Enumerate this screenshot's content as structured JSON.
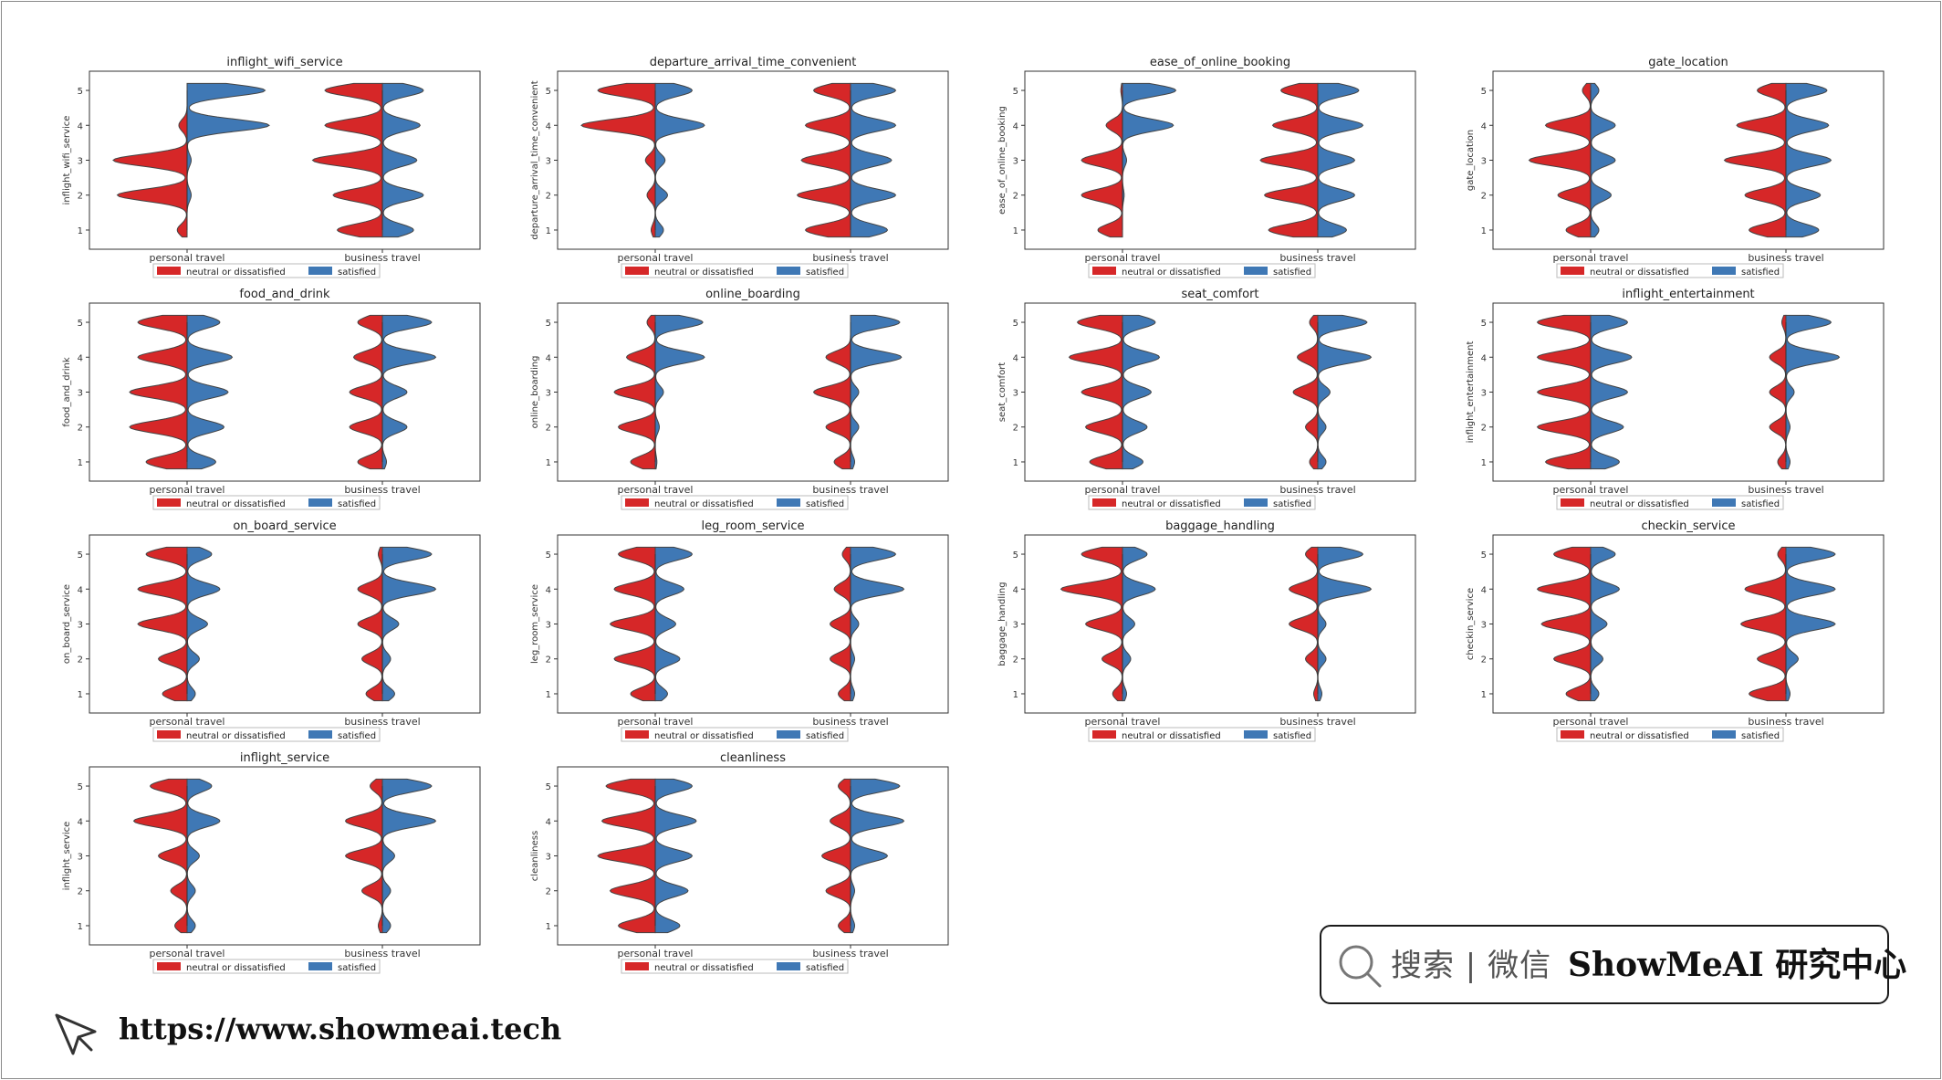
{
  "colors": {
    "neutral": "#d62728",
    "satisfied": "#3f78b5"
  },
  "chart_data": [
    {
      "type": "violin",
      "title": "inflight_wifi_service",
      "ylabel": "inflight_wifi_service",
      "categories": [
        "personal travel",
        "business travel"
      ],
      "series": [
        {
          "name": "neutral or dissatisfied",
          "density": [
            [
              0.12,
              0.85,
              0.9,
              0.1,
              0
            ],
            [
              0.55,
              0.6,
              0.85,
              0.7,
              0.7
            ]
          ]
        },
        {
          "name": "satisfied",
          "density": [
            [
              0,
              0.05,
              0.05,
              1.0,
              0.95
            ],
            [
              0.38,
              0.5,
              0.42,
              0.46,
              0.5
            ]
          ]
        }
      ],
      "yticks": [
        1,
        2,
        3,
        4,
        5
      ],
      "legend": [
        "neutral or dissatisfied",
        "satisfied"
      ]
    },
    {
      "type": "violin",
      "title": "departure_arrival_time_convenient",
      "ylabel": "departure_arrival_time_convenient",
      "categories": [
        "personal travel",
        "business travel"
      ],
      "series": [
        {
          "name": "neutral or dissatisfied",
          "density": [
            [
              0.05,
              0.1,
              0.12,
              0.9,
              0.7
            ],
            [
              0.55,
              0.65,
              0.6,
              0.55,
              0.45
            ]
          ]
        },
        {
          "name": "satisfied",
          "density": [
            [
              0.1,
              0.15,
              0.12,
              0.6,
              0.45
            ],
            [
              0.45,
              0.55,
              0.5,
              0.55,
              0.55
            ]
          ]
        }
      ],
      "yticks": [
        1,
        2,
        3,
        4,
        5
      ],
      "legend": [
        "neutral or dissatisfied",
        "satisfied"
      ]
    },
    {
      "type": "violin",
      "title": "ease_of_online_booking",
      "ylabel": "ease_of_online_booking",
      "categories": [
        "personal travel",
        "business travel"
      ],
      "series": [
        {
          "name": "neutral or dissatisfied",
          "density": [
            [
              0.3,
              0.5,
              0.5,
              0.2,
              0.02
            ],
            [
              0.6,
              0.65,
              0.7,
              0.55,
              0.45
            ]
          ]
        },
        {
          "name": "satisfied",
          "density": [
            [
              0,
              0.02,
              0.05,
              0.62,
              0.65
            ],
            [
              0.35,
              0.45,
              0.45,
              0.55,
              0.5
            ]
          ]
        }
      ],
      "yticks": [
        1,
        2,
        3,
        4,
        5
      ],
      "legend": [
        "neutral or dissatisfied",
        "satisfied"
      ]
    },
    {
      "type": "violin",
      "title": "gate_location",
      "ylabel": "gate_location",
      "categories": [
        "personal travel",
        "business travel"
      ],
      "series": [
        {
          "name": "neutral or dissatisfied",
          "density": [
            [
              0.3,
              0.4,
              0.75,
              0.55,
              0.1
            ],
            [
              0.45,
              0.5,
              0.75,
              0.6,
              0.35
            ]
          ]
        },
        {
          "name": "satisfied",
          "density": [
            [
              0.1,
              0.25,
              0.3,
              0.3,
              0.1
            ],
            [
              0.4,
              0.42,
              0.55,
              0.52,
              0.5
            ]
          ]
        }
      ],
      "yticks": [
        1,
        2,
        3,
        4,
        5
      ],
      "legend": [
        "neutral or dissatisfied",
        "satisfied"
      ]
    },
    {
      "type": "violin",
      "title": "food_and_drink",
      "ylabel": "food_and_drink",
      "categories": [
        "personal travel",
        "business travel"
      ],
      "series": [
        {
          "name": "neutral or dissatisfied",
          "density": [
            [
              0.5,
              0.7,
              0.7,
              0.6,
              0.6
            ],
            [
              0.3,
              0.4,
              0.4,
              0.35,
              0.3
            ]
          ]
        },
        {
          "name": "satisfied",
          "density": [
            [
              0.35,
              0.45,
              0.5,
              0.55,
              0.4
            ],
            [
              0.05,
              0.3,
              0.3,
              0.65,
              0.6
            ]
          ]
        }
      ],
      "yticks": [
        1,
        2,
        3,
        4,
        5
      ],
      "legend": [
        "neutral or dissatisfied",
        "satisfied"
      ]
    },
    {
      "type": "violin",
      "title": "online_boarding",
      "ylabel": "online_boarding",
      "categories": [
        "personal travel",
        "business travel"
      ],
      "series": [
        {
          "name": "neutral or dissatisfied",
          "density": [
            [
              0.3,
              0.45,
              0.5,
              0.35,
              0.1
            ],
            [
              0.2,
              0.3,
              0.45,
              0.3,
              0
            ]
          ]
        },
        {
          "name": "satisfied",
          "density": [
            [
              0.02,
              0.05,
              0.1,
              0.6,
              0.58
            ],
            [
              0.05,
              0.1,
              0.1,
              0.62,
              0.6
            ]
          ]
        }
      ],
      "yticks": [
        1,
        2,
        3,
        4,
        5
      ],
      "legend": [
        "neutral or dissatisfied",
        "satisfied"
      ]
    },
    {
      "type": "violin",
      "title": "seat_comfort",
      "ylabel": "seat_comfort",
      "categories": [
        "personal travel",
        "business travel"
      ],
      "series": [
        {
          "name": "neutral or dissatisfied",
          "density": [
            [
              0.4,
              0.45,
              0.5,
              0.65,
              0.55
            ],
            [
              0.1,
              0.15,
              0.3,
              0.25,
              0.1
            ]
          ]
        },
        {
          "name": "satisfied",
          "density": [
            [
              0.25,
              0.3,
              0.35,
              0.45,
              0.4
            ],
            [
              0.1,
              0.1,
              0.15,
              0.65,
              0.6
            ]
          ]
        }
      ],
      "yticks": [
        1,
        2,
        3,
        4,
        5
      ],
      "legend": [
        "neutral or dissatisfied",
        "satisfied"
      ]
    },
    {
      "type": "violin",
      "title": "inflight_entertainment",
      "ylabel": "inflight_entertainment",
      "categories": [
        "personal travel",
        "business travel"
      ],
      "series": [
        {
          "name": "neutral or dissatisfied",
          "density": [
            [
              0.55,
              0.65,
              0.65,
              0.65,
              0.65
            ],
            [
              0.1,
              0.2,
              0.2,
              0.2,
              0.05
            ]
          ]
        },
        {
          "name": "satisfied",
          "density": [
            [
              0.35,
              0.4,
              0.45,
              0.5,
              0.45
            ],
            [
              0.05,
              0.05,
              0.1,
              0.65,
              0.55
            ]
          ]
        }
      ],
      "yticks": [
        1,
        2,
        3,
        4,
        5
      ],
      "legend": [
        "neutral or dissatisfied",
        "satisfied"
      ]
    },
    {
      "type": "violin",
      "title": "on_board_service",
      "ylabel": "on_board_service",
      "categories": [
        "personal travel",
        "business travel"
      ],
      "series": [
        {
          "name": "neutral or dissatisfied",
          "density": [
            [
              0.3,
              0.35,
              0.6,
              0.6,
              0.5
            ],
            [
              0.2,
              0.25,
              0.3,
              0.3,
              0.05
            ]
          ]
        },
        {
          "name": "satisfied",
          "density": [
            [
              0.1,
              0.15,
              0.25,
              0.4,
              0.3
            ],
            [
              0.15,
              0.1,
              0.2,
              0.65,
              0.6
            ]
          ]
        }
      ],
      "yticks": [
        1,
        2,
        3,
        4,
        5
      ],
      "legend": [
        "neutral or dissatisfied",
        "satisfied"
      ]
    },
    {
      "type": "violin",
      "title": "leg_room_service",
      "ylabel": "leg_room_service",
      "categories": [
        "personal travel",
        "business travel"
      ],
      "series": [
        {
          "name": "neutral or dissatisfied",
          "density": [
            [
              0.3,
              0.5,
              0.55,
              0.5,
              0.45
            ],
            [
              0.15,
              0.25,
              0.25,
              0.2,
              0.1
            ]
          ]
        },
        {
          "name": "satisfied",
          "density": [
            [
              0.15,
              0.3,
              0.25,
              0.35,
              0.45
            ],
            [
              0.05,
              0.05,
              0.1,
              0.65,
              0.55
            ]
          ]
        }
      ],
      "yticks": [
        1,
        2,
        3,
        4,
        5
      ],
      "legend": [
        "neutral or dissatisfied",
        "satisfied"
      ]
    },
    {
      "type": "violin",
      "title": "baggage_handling",
      "ylabel": "baggage_handling",
      "categories": [
        "personal travel",
        "business travel"
      ],
      "series": [
        {
          "name": "neutral or dissatisfied",
          "density": [
            [
              0.12,
              0.25,
              0.45,
              0.75,
              0.5
            ],
            [
              0.05,
              0.15,
              0.35,
              0.35,
              0.15
            ]
          ]
        },
        {
          "name": "satisfied",
          "density": [
            [
              0.05,
              0.1,
              0.15,
              0.4,
              0.3
            ],
            [
              0.05,
              0.1,
              0.1,
              0.65,
              0.55
            ]
          ]
        }
      ],
      "yticks": [
        1,
        2,
        3,
        4,
        5
      ],
      "legend": [
        "neutral or dissatisfied",
        "satisfied"
      ]
    },
    {
      "type": "violin",
      "title": "checkin_service",
      "ylabel": "checkin_service",
      "categories": [
        "personal travel",
        "business travel"
      ],
      "series": [
        {
          "name": "neutral or dissatisfied",
          "density": [
            [
              0.3,
              0.45,
              0.6,
              0.65,
              0.45
            ],
            [
              0.45,
              0.35,
              0.55,
              0.5,
              0.1
            ]
          ]
        },
        {
          "name": "satisfied",
          "density": [
            [
              0.1,
              0.15,
              0.2,
              0.35,
              0.3
            ],
            [
              0.05,
              0.15,
              0.6,
              0.6,
              0.6
            ]
          ]
        }
      ],
      "yticks": [
        1,
        2,
        3,
        4,
        5
      ],
      "legend": [
        "neutral or dissatisfied",
        "satisfied"
      ]
    },
    {
      "type": "violin",
      "title": "inflight_service",
      "ylabel": "inflight_service",
      "categories": [
        "personal travel",
        "business travel"
      ],
      "series": [
        {
          "name": "neutral or dissatisfied",
          "density": [
            [
              0.15,
              0.2,
              0.35,
              0.65,
              0.45
            ],
            [
              0.05,
              0.25,
              0.45,
              0.45,
              0.15
            ]
          ]
        },
        {
          "name": "satisfied",
          "density": [
            [
              0.1,
              0.1,
              0.15,
              0.4,
              0.3
            ],
            [
              0.1,
              0.1,
              0.15,
              0.65,
              0.6
            ]
          ]
        }
      ],
      "yticks": [
        1,
        2,
        3,
        4,
        5
      ],
      "legend": [
        "neutral or dissatisfied",
        "satisfied"
      ]
    },
    {
      "type": "violin",
      "title": "cleanliness",
      "ylabel": "cleanliness",
      "categories": [
        "personal travel",
        "business travel"
      ],
      "series": [
        {
          "name": "neutral or dissatisfied",
          "density": [
            [
              0.45,
              0.55,
              0.7,
              0.65,
              0.6
            ],
            [
              0.15,
              0.3,
              0.35,
              0.25,
              0.15
            ]
          ]
        },
        {
          "name": "satisfied",
          "density": [
            [
              0.3,
              0.4,
              0.45,
              0.5,
              0.45
            ],
            [
              0.05,
              0.05,
              0.45,
              0.65,
              0.6
            ]
          ]
        }
      ],
      "yticks": [
        1,
        2,
        3,
        4,
        5
      ],
      "legend": [
        "neutral or dissatisfied",
        "satisfied"
      ]
    }
  ],
  "search": {
    "hint": "搜索 | 微信",
    "brand": "ShowMeAI 研究中心"
  },
  "footer": {
    "url": "https://www.showmeai.tech"
  }
}
